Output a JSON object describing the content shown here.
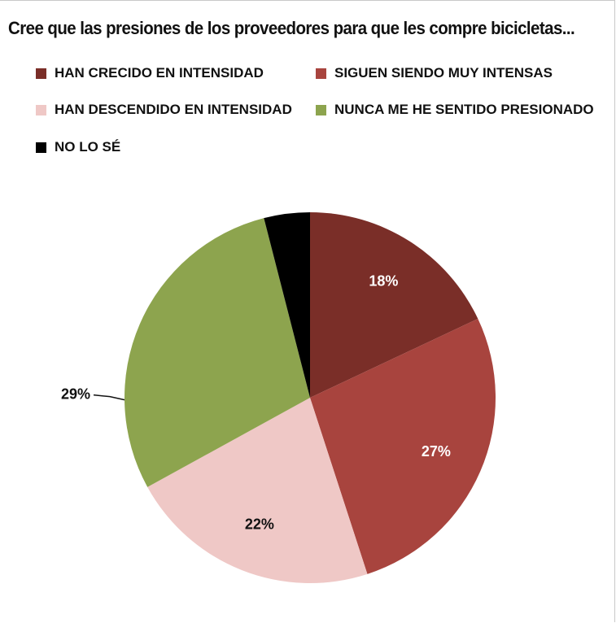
{
  "chart_data": {
    "type": "pie",
    "title": "Cree que las presiones de los proveedores para que les compre bicicletas...",
    "categories": [
      "HAN CRECIDO EN INTENSIDAD",
      "SIGUEN SIENDO MUY INTENSAS",
      "HAN DESCENDIDO EN INTENSIDAD",
      "NUNCA ME HE SENTIDO PRESIONADO",
      "NO LO SÉ"
    ],
    "values": [
      18,
      27,
      22,
      29,
      4
    ],
    "value_labels": [
      "18%",
      "27%",
      "22%",
      "29%",
      ""
    ],
    "colors": [
      "#7a2e28",
      "#a8443e",
      "#efc8c6",
      "#8da44e",
      "#000000"
    ],
    "label_colors": [
      "#ffffff",
      "#ffffff",
      "#111111",
      "#111111",
      "#ffffff"
    ],
    "legend_position": "top"
  }
}
